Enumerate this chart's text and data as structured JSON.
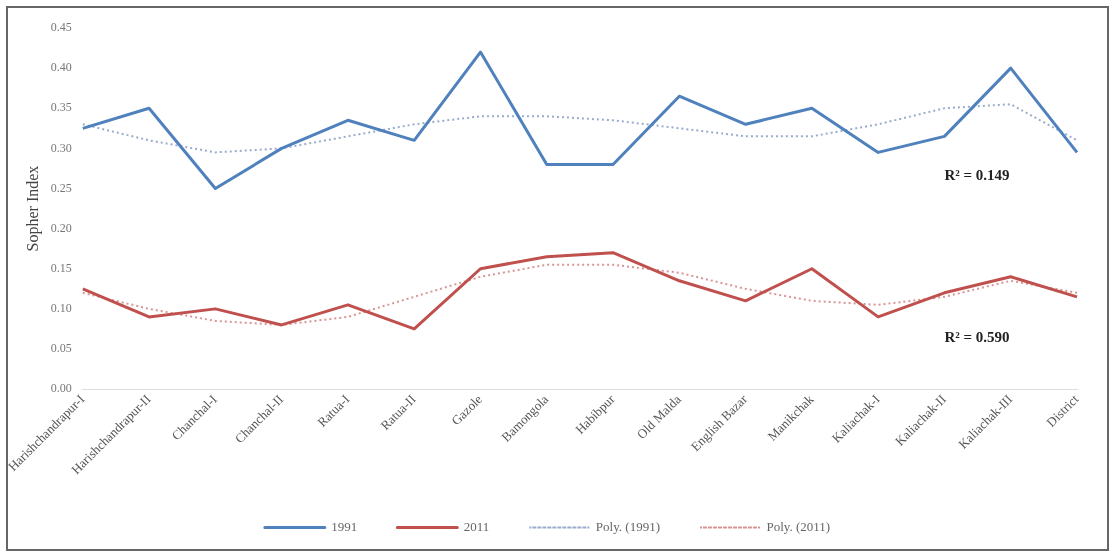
{
  "chart_data": {
    "type": "line",
    "ylabel": "Sopher Index",
    "categories": [
      "Harishchandrapur-I",
      "Harishchandrapur-II",
      "Chanchal-I",
      "Chanchal-II",
      "Ratua-I",
      "Ratua-II",
      "Gazole",
      "Bamongola",
      "Habibpur",
      "Old Malda",
      "English Bazar",
      "Manikchak",
      "Kaliachak-I",
      "Kaliachak-II",
      "Kaliachak-III",
      "District"
    ],
    "series": [
      {
        "name": "1991",
        "color": "#4f81bd",
        "values": [
          0.325,
          0.35,
          0.25,
          0.3,
          0.335,
          0.31,
          0.42,
          0.28,
          0.28,
          0.365,
          0.33,
          0.35,
          0.295,
          0.315,
          0.4,
          0.295
        ]
      },
      {
        "name": "2011",
        "color": "#c0504d",
        "values": [
          0.125,
          0.09,
          0.1,
          0.08,
          0.105,
          0.075,
          0.15,
          0.165,
          0.17,
          0.135,
          0.11,
          0.15,
          0.09,
          0.12,
          0.14,
          0.115
        ]
      },
      {
        "name": "Poly. (1991)",
        "color": "#9aaccc",
        "line_style": "dotted",
        "values": [
          0.33,
          0.31,
          0.295,
          0.3,
          0.315,
          0.33,
          0.34,
          0.34,
          0.335,
          0.325,
          0.315,
          0.315,
          0.33,
          0.35,
          0.355,
          0.31
        ]
      },
      {
        "name": "Poly. (2011)",
        "color": "#d99594",
        "line_style": "dotted",
        "values": [
          0.12,
          0.1,
          0.085,
          0.08,
          0.09,
          0.115,
          0.14,
          0.155,
          0.155,
          0.145,
          0.125,
          0.11,
          0.105,
          0.115,
          0.135,
          0.12
        ]
      }
    ],
    "ylim": [
      0,
      0.45
    ],
    "yticks": [
      {
        "value": 0,
        "label": "0.00"
      },
      0.05,
      {
        "value": 0.1,
        "label": "0.10"
      },
      0.15,
      {
        "value": 0.2,
        "label": "0.20"
      },
      0.25,
      {
        "value": 0.3,
        "label": "0.30"
      },
      0.35,
      {
        "value": 0.4,
        "label": "0.40"
      },
      0.45
    ],
    "marker": "none",
    "line_style": "solid",
    "grid": false,
    "legend": "bottom",
    "annotations": [
      "R² = 0.149",
      "R² = 0.590"
    ]
  }
}
